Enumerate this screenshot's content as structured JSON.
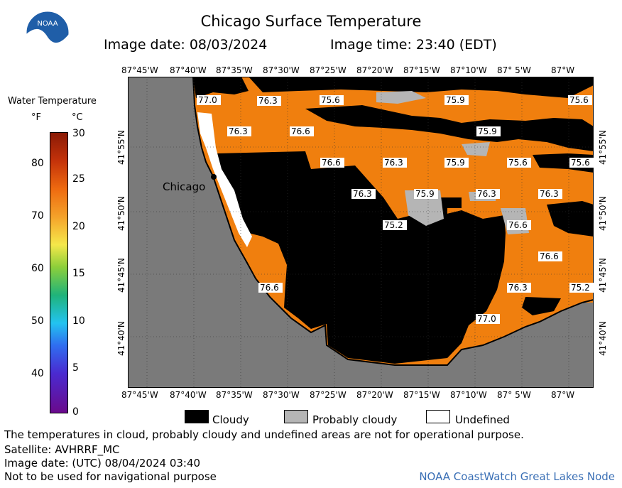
{
  "header": {
    "title": "Chicago Surface Temperature",
    "image_date": "Image date: 08/03/2024",
    "image_time": "Image time: 23:40 (EDT)",
    "logo_text": "NOAA"
  },
  "colorbar": {
    "title": "Water Temperature",
    "unit_f": "°F",
    "unit_c": "°C",
    "f_ticks": [
      "80",
      "70",
      "60",
      "50",
      "40"
    ],
    "c_ticks": [
      "30",
      "25",
      "20",
      "15",
      "10",
      "5",
      "0"
    ]
  },
  "map": {
    "lon_labels": [
      "87°45'W",
      "87°40'W",
      "87°35'W",
      "87°30'W",
      "87°25'W",
      "87°20'W",
      "87°15'W",
      "87°10'W",
      "87° 5'W",
      "87°W"
    ],
    "lat_labels": [
      "41°55'N",
      "41°50'N",
      "41°45'N",
      "41°40'N"
    ],
    "city_label": "Chicago",
    "temps": [
      "77.0",
      "76.3",
      "75.6",
      "75.9",
      "75.6",
      "76.3",
      "76.6",
      "75.9",
      "76.6",
      "76.3",
      "75.9",
      "75.6",
      "75.6",
      "76.3",
      "75.9",
      "76.3",
      "76.3",
      "75.2",
      "76.6",
      "76.6",
      "76.6",
      "76.3",
      "75.2",
      "77.0"
    ]
  },
  "legend": {
    "cloudy": "Cloudy",
    "probably_cloudy": "Probably cloudy",
    "undefined": "Undefined"
  },
  "footer": {
    "note": "The temperatures in cloud, probably cloudy and undefined areas are not for operational purpose.",
    "satellite": "Satellite: AVHRRF_MC",
    "utc_date": "Image date: (UTC) 08/04/2024  03:40",
    "nav": "Not to be used for navigational purpose",
    "credit": "NOAA CoastWatch Great Lakes Node"
  },
  "colors": {
    "water": "#f07f0e",
    "cloud": "#000000",
    "prob_cloud": "#b5b5b5",
    "land": "#7a7a7a",
    "credit": "#3a6fb5"
  }
}
